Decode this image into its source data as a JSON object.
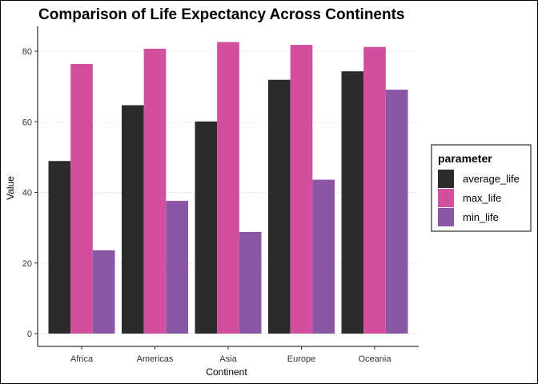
{
  "chart_data": {
    "type": "bar",
    "title": "Comparison of Life Expectancy Across Continents",
    "xlabel": "Continent",
    "ylabel": "Value",
    "categories": [
      "Africa",
      "Americas",
      "Asia",
      "Europe",
      "Oceania"
    ],
    "series": [
      {
        "name": "average_life",
        "color": "#2d2a2d",
        "values": [
          48.9,
          64.7,
          60.1,
          71.9,
          74.3
        ]
      },
      {
        "name": "max_life",
        "color": "#d14f9e",
        "values": [
          76.4,
          80.7,
          82.6,
          81.8,
          81.2
        ]
      },
      {
        "name": "min_life",
        "color": "#8b57a5",
        "values": [
          23.6,
          37.6,
          28.8,
          43.6,
          69.1
        ]
      }
    ],
    "ylim": [
      0,
      87
    ],
    "yticks": [
      0,
      20,
      40,
      60,
      80
    ],
    "grid": "horizontal dotted",
    "legend": {
      "title": "parameter",
      "position": "right"
    }
  }
}
